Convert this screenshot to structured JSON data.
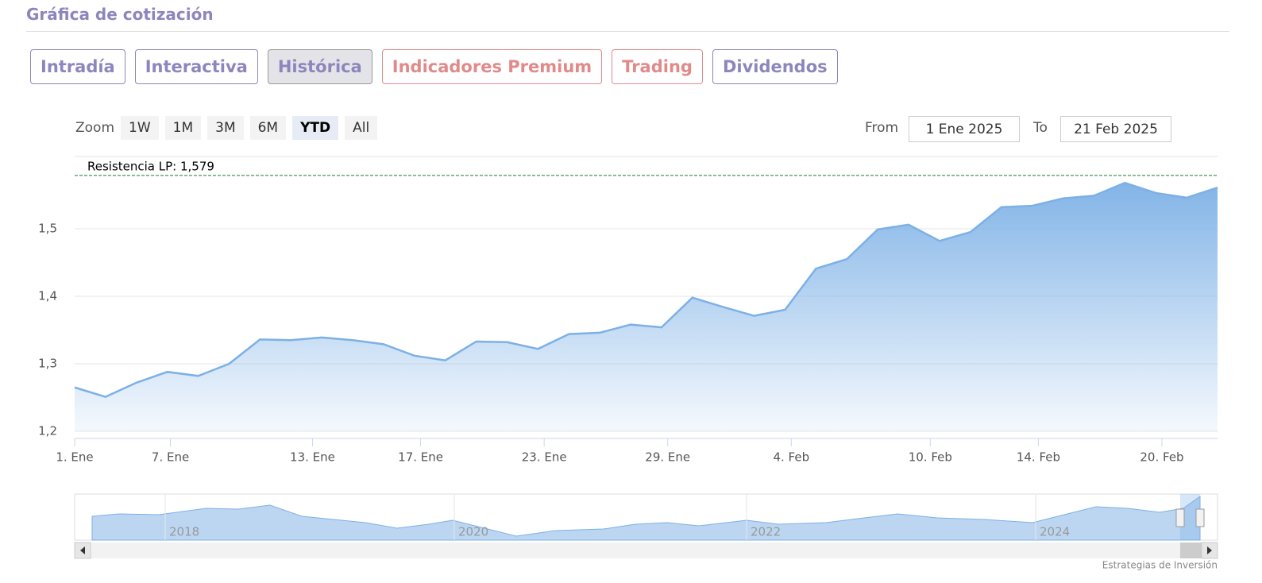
{
  "header": {
    "title": "Gráfica de cotización"
  },
  "tabs": [
    {
      "label": "Intradía",
      "color": "#8c86bd"
    },
    {
      "label": "Interactiva",
      "color": "#8c86bd"
    },
    {
      "label": "Histórica",
      "color": "#8c86bd"
    },
    {
      "label": "Indicadores Premium",
      "color": "#e08a8a"
    },
    {
      "label": "Trading",
      "color": "#e08a8a"
    },
    {
      "label": "Dividendos",
      "color": "#8c86bd"
    }
  ],
  "selected_tab": 2,
  "zoom": {
    "label": "Zoom",
    "buttons": [
      "1W",
      "1M",
      "3M",
      "6M",
      "YTD",
      "All"
    ],
    "selected": 4
  },
  "range": {
    "from_label": "From",
    "from": "1 Ene 2025",
    "to_label": "To",
    "to": "21 Feb 2025"
  },
  "chart_data": {
    "type": "area",
    "color": "#7cb0e6",
    "values": [
      1.265,
      1.251,
      1.272,
      1.288,
      1.282,
      1.3,
      1.336,
      1.335,
      1.339,
      1.335,
      1.329,
      1.312,
      1.305,
      1.333,
      1.332,
      1.322,
      1.344,
      1.346,
      1.358,
      1.354,
      1.398,
      1.384,
      1.371,
      1.38,
      1.441,
      1.455,
      1.499,
      1.506,
      1.482,
      1.495,
      1.532,
      1.534,
      1.545,
      1.549,
      1.568,
      1.553,
      1.546,
      1.561
    ],
    "xlim": [
      0,
      37
    ],
    "xticks": [
      {
        "value": 0,
        "label": "1. Ene"
      },
      {
        "value": 3.1,
        "label": "7. Ene"
      },
      {
        "value": 7.7,
        "label": "13. Ene"
      },
      {
        "value": 11.2,
        "label": "17. Ene"
      },
      {
        "value": 15.2,
        "label": "23. Ene"
      },
      {
        "value": 19.2,
        "label": "29. Ene"
      },
      {
        "value": 23.2,
        "label": "4. Feb"
      },
      {
        "value": 27.7,
        "label": "10. Feb"
      },
      {
        "value": 31.2,
        "label": "14. Feb"
      },
      {
        "value": 35.2,
        "label": "20. Feb"
      }
    ],
    "ylim": [
      1.2,
      1.6
    ],
    "yticks": [
      {
        "value": 1.2,
        "label": "1,2"
      },
      {
        "value": 1.3,
        "label": "1,3"
      },
      {
        "value": 1.4,
        "label": "1,4"
      },
      {
        "value": 1.5,
        "label": "1,5"
      }
    ],
    "grid": true,
    "annotations": [
      {
        "label": "Resistencia LP: 1,579",
        "value": 1.579,
        "color": "#1a7a2a"
      }
    ]
  },
  "navigator": {
    "labels": [
      "2018",
      "2020",
      "2022",
      "2024"
    ]
  },
  "credits": "Estrategias de Inversión"
}
